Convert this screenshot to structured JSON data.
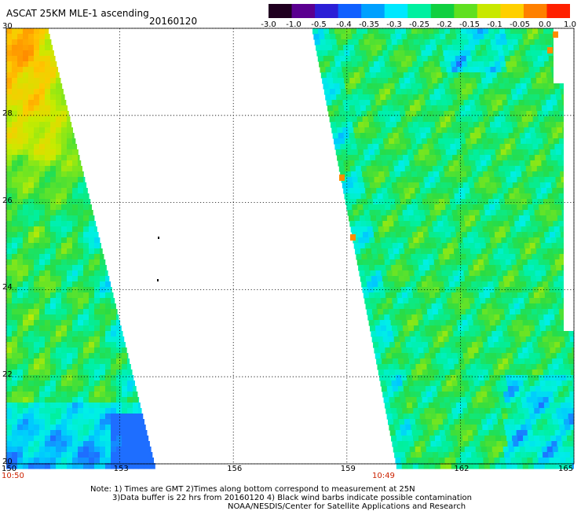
{
  "header": {
    "title": "ASCAT 25KM MLE-1 ascending",
    "date": "20160120"
  },
  "colorbar": {
    "labels": [
      "-3.0",
      "-1.0",
      "-0.5",
      "-0.4",
      "-0.35",
      "-0.3",
      "-0.25",
      "-0.2",
      "-0.15",
      "-0.1",
      "-0.05",
      "0.0",
      "1.0"
    ],
    "colors": [
      "#200020",
      "#5a0090",
      "#2b1fd6",
      "#1060ff",
      "#00a0ff",
      "#00e8ff",
      "#00f0a0",
      "#10d040",
      "#60e020",
      "#c8e800",
      "#ffd000",
      "#ff8000",
      "#ff2000"
    ]
  },
  "axes": {
    "lon_ticks": [
      "150",
      "153",
      "156",
      "159",
      "162",
      "165"
    ],
    "lat_ticks": [
      "30",
      "28",
      "26",
      "24",
      "22",
      "20"
    ]
  },
  "swath_times": {
    "left": "10:50",
    "right": "10:49"
  },
  "notes": [
    "Note: 1) Times are GMT 2)Times along bottom correspond to measurement at 25N",
    "3)Data buffer is 22 hrs from 20160120 4) Black wind barbs indicate possible contamination",
    "NOAA/NESDIS/Center for Satellite Applications and Research"
  ]
}
